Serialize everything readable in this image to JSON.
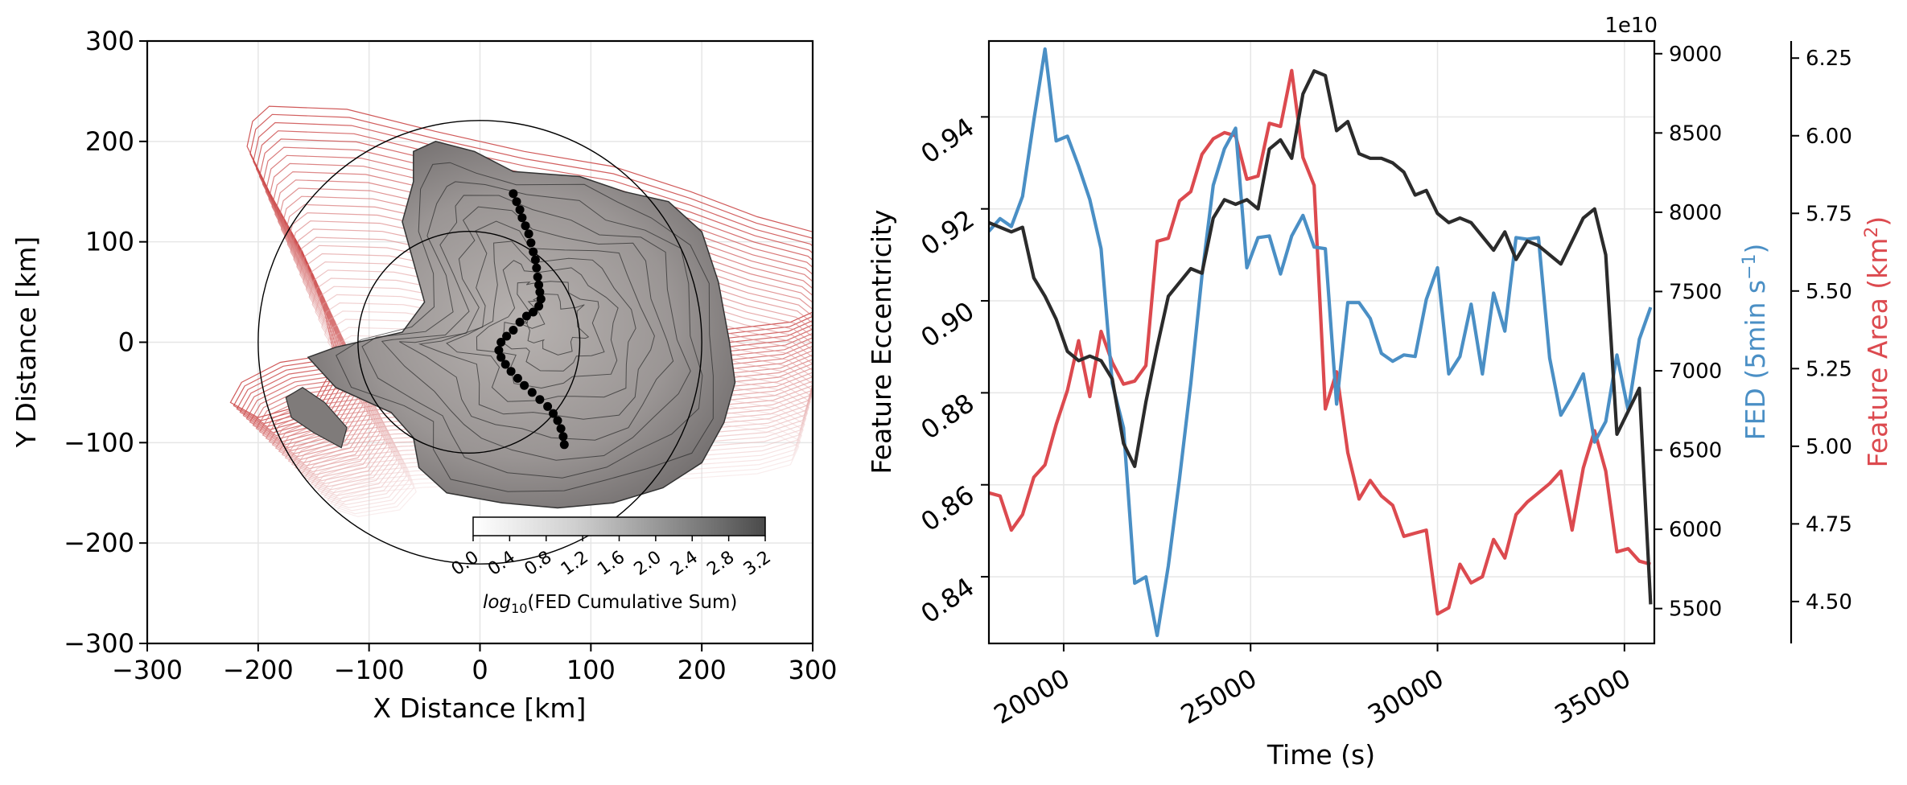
{
  "colors": {
    "eccentricity": "#2b2b2b",
    "fed": "#4a8fc5",
    "area": "#dc4a4f",
    "contour_fill": "#8c8c8c",
    "outline_red": "#d9534f"
  },
  "left_panel": {
    "xlabel": "X Distance [km]",
    "ylabel": "Y Distance [km]",
    "xticks": [
      "−300",
      "−200",
      "−100",
      "0",
      "100",
      "200",
      "300"
    ],
    "yticks": [
      "300",
      "200",
      "100",
      "0",
      "−100",
      "−200",
      "−300"
    ],
    "colorbar": {
      "label": "log10(FED Cumulative Sum)",
      "label_prefix": "log",
      "label_sub": "10",
      "label_rest": "(FED Cumulative Sum)",
      "ticks": [
        "0.0",
        "0.4",
        "0.8",
        "1.2",
        "1.6",
        "2.0",
        "2.4",
        "2.8",
        "3.2"
      ]
    }
  },
  "right_panel": {
    "xlabel": "Time (s)",
    "ylabel_left": "Feature Eccentricity",
    "ylabel_fed": "FED (5min s",
    "ylabel_fed_sup": "−1",
    "ylabel_fed_end": ")",
    "ylabel_area": "Feature Area (km",
    "ylabel_area_sup": "2",
    "ylabel_area_end": ")",
    "offset_text": "1e10",
    "xticks": [
      "20000",
      "25000",
      "30000",
      "35000"
    ],
    "yticks_left": [
      "0.94",
      "0.92",
      "0.90",
      "0.88",
      "0.86",
      "0.84"
    ],
    "yticks_fed": [
      "9000",
      "8500",
      "8000",
      "7500",
      "7000",
      "6500",
      "6000",
      "5500"
    ],
    "yticks_area": [
      "6.25",
      "6.00",
      "5.75",
      "5.50",
      "5.25",
      "5.00",
      "4.75",
      "4.50"
    ]
  },
  "chart_data": [
    {
      "type": "scatter",
      "title": "",
      "xlabel": "X Distance [km]",
      "ylabel": "Y Distance [km]",
      "xlim": [
        -300,
        300
      ],
      "ylim": [
        -300,
        300
      ],
      "grid": true,
      "centroid_track_km": [
        [
          30,
          148
        ],
        [
          33,
          140
        ],
        [
          36,
          132
        ],
        [
          38,
          124
        ],
        [
          41,
          116
        ],
        [
          44,
          108
        ],
        [
          46,
          99
        ],
        [
          48,
          90
        ],
        [
          50,
          82
        ],
        [
          51,
          74
        ],
        [
          52,
          65
        ],
        [
          53,
          57
        ],
        [
          54,
          50
        ],
        [
          55,
          43
        ],
        [
          53,
          36
        ],
        [
          48,
          30
        ],
        [
          42,
          26
        ],
        [
          36,
          20
        ],
        [
          30,
          12
        ],
        [
          24,
          6
        ],
        [
          19,
          0
        ],
        [
          17,
          -8
        ],
        [
          19,
          -15
        ],
        [
          23,
          -22
        ],
        [
          28,
          -29
        ],
        [
          34,
          -36
        ],
        [
          40,
          -43
        ],
        [
          47,
          -50
        ],
        [
          54,
          -57
        ],
        [
          61,
          -64
        ],
        [
          66,
          -71
        ],
        [
          70,
          -78
        ],
        [
          73,
          -86
        ],
        [
          75,
          -94
        ],
        [
          76,
          -102
        ]
      ],
      "colorbar": {
        "label": "log10(FED Cumulative Sum)",
        "range": [
          0.0,
          3.2
        ],
        "levels": [
          0.0,
          0.4,
          0.8,
          1.2,
          1.6,
          2.0,
          2.4,
          2.8,
          3.2
        ]
      }
    },
    {
      "type": "line",
      "title": "",
      "xlabel": "Time (s)",
      "xlim": [
        18000,
        35800
      ],
      "grid": true,
      "time": [
        18000,
        18300,
        18600,
        18900,
        19200,
        19500,
        19800,
        20100,
        20400,
        20700,
        21000,
        21300,
        21600,
        21900,
        22200,
        22500,
        22800,
        23100,
        23400,
        23700,
        24000,
        24300,
        24600,
        24900,
        25200,
        25500,
        25800,
        26100,
        26400,
        26700,
        27000,
        27300,
        27600,
        27900,
        28200,
        28500,
        28800,
        29100,
        29400,
        29700,
        30000,
        30300,
        30600,
        30900,
        31200,
        31500,
        31800,
        32100,
        32400,
        32700,
        33000,
        33300,
        33600,
        33900,
        34200,
        34500,
        34800,
        35100,
        35400,
        35700
      ],
      "series": [
        {
          "name": "Feature Eccentricity",
          "axis": "left",
          "ylim": [
            0.8255,
            0.9565
          ],
          "values": [
            0.917,
            0.916,
            0.915,
            0.916,
            0.905,
            0.901,
            0.896,
            0.889,
            0.887,
            0.888,
            0.887,
            0.883,
            0.869,
            0.864,
            0.878,
            0.89,
            0.901,
            0.904,
            0.907,
            0.906,
            0.918,
            0.922,
            0.921,
            0.922,
            0.92,
            0.933,
            0.935,
            0.931,
            0.945,
            0.95,
            0.949,
            0.937,
            0.939,
            0.932,
            0.931,
            0.931,
            0.93,
            0.928,
            0.923,
            0.924,
            0.919,
            0.917,
            0.918,
            0.917,
            0.914,
            0.911,
            0.915,
            0.909,
            0.913,
            0.912,
            0.91,
            0.908,
            0.913,
            0.918,
            0.92,
            0.91,
            0.871,
            0.876,
            0.881,
            0.834
          ]
        },
        {
          "name": "FED (5min s−1)",
          "axis": "right",
          "ylim": [
            5280,
            9080
          ],
          "values": [
            7880,
            7960,
            7910,
            8100,
            8580,
            9030,
            8450,
            8480,
            8290,
            8080,
            7770,
            6920,
            6640,
            5660,
            5700,
            5330,
            5770,
            6320,
            6920,
            7600,
            8170,
            8400,
            8530,
            7650,
            7840,
            7850,
            7610,
            7850,
            7980,
            7780,
            7770,
            6790,
            7430,
            7430,
            7330,
            7110,
            7060,
            7100,
            7090,
            7450,
            7650,
            6980,
            7090,
            7420,
            6980,
            7490,
            7250,
            7840,
            7830,
            7840,
            7080,
            6720,
            6840,
            6980,
            6550,
            6680,
            7100,
            6750,
            7200,
            7400
          ],
          "scale_note": "1e10"
        },
        {
          "name": "Feature Area (km2)",
          "axis": "far-right",
          "ylim": [
            4.365,
            6.305
          ],
          "values": [
            4.85,
            4.84,
            4.73,
            4.78,
            4.9,
            4.94,
            5.07,
            5.18,
            5.34,
            5.16,
            5.37,
            5.27,
            5.2,
            5.21,
            5.26,
            5.66,
            5.67,
            5.79,
            5.82,
            5.94,
            5.99,
            6.01,
            6.0,
            5.86,
            5.87,
            6.04,
            6.03,
            6.21,
            5.93,
            5.84,
            5.12,
            5.24,
            4.98,
            4.83,
            4.89,
            4.84,
            4.81,
            4.71,
            4.72,
            4.73,
            4.46,
            4.48,
            4.62,
            4.56,
            4.58,
            4.7,
            4.64,
            4.78,
            4.82,
            4.85,
            4.88,
            4.92,
            4.73,
            4.93,
            5.05,
            4.92,
            4.66,
            4.67,
            4.63,
            4.62
          ]
        }
      ]
    }
  ]
}
